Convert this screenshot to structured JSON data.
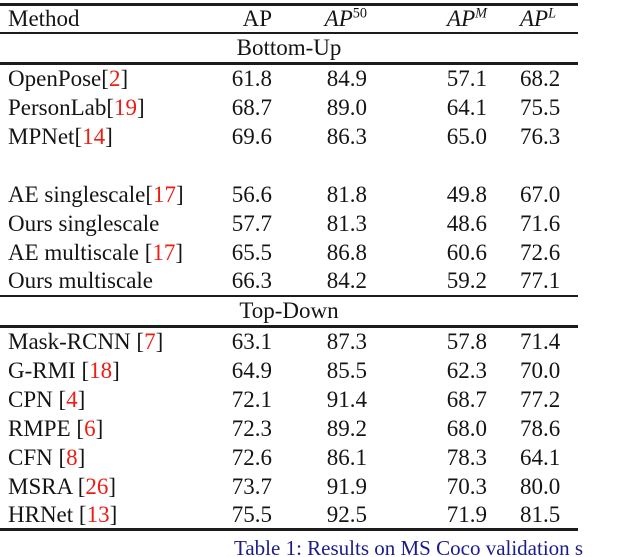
{
  "colors": {
    "citation_red": "#ee1c12",
    "caption_blue": "#1b1b8a",
    "text": "#141414",
    "rule": "#1c1c1c",
    "background": "#ffffff"
  },
  "table": {
    "columns": [
      {
        "label": "Method"
      },
      {
        "base": "AP",
        "sup": ""
      },
      {
        "base": "AP",
        "sup": "50"
      },
      {
        "base": "AP",
        "sup": "M"
      },
      {
        "base": "AP",
        "sup": "L"
      }
    ],
    "rows": [
      {
        "type": "section",
        "label": "Bottom-Up"
      },
      {
        "type": "data",
        "method": "OpenPose",
        "bracket_open": "[",
        "cite": "2",
        "bracket_close": "]",
        "values": [
          "61.8",
          "84.9",
          "57.1",
          "68.2"
        ]
      },
      {
        "type": "data",
        "method": "PersonLab",
        "bracket_open": "[",
        "cite": "19",
        "bracket_close": "]",
        "values": [
          "68.7",
          "89.0",
          "64.1",
          "75.5"
        ]
      },
      {
        "type": "data",
        "method": "MPNet",
        "bracket_open": "[",
        "cite": "14",
        "bracket_close": "]",
        "values": [
          "69.6",
          "86.3",
          "65.0",
          "76.3"
        ]
      },
      {
        "type": "spacer"
      },
      {
        "type": "data",
        "method": "AE singlescale",
        "bracket_open": "[",
        "cite": "17",
        "bracket_close": "]",
        "values": [
          "56.6",
          "81.8",
          "49.8",
          "67.0"
        ]
      },
      {
        "type": "data",
        "method": "Ours singlescale",
        "bracket_open": "",
        "cite": "",
        "bracket_close": "",
        "values": [
          "57.7",
          "81.3",
          "48.6",
          "71.6"
        ]
      },
      {
        "type": "data",
        "method": "AE multiscale ",
        "bracket_open": "[",
        "cite": "17",
        "bracket_close": "]",
        "values": [
          "65.5",
          "86.8",
          "60.6",
          "72.6"
        ]
      },
      {
        "type": "data",
        "method": "Ours multiscale",
        "bracket_open": "",
        "cite": "",
        "bracket_close": "",
        "values": [
          "66.3",
          "84.2",
          "59.2",
          "77.1"
        ],
        "rule_below": true
      },
      {
        "type": "section",
        "label": "Top-Down"
      },
      {
        "type": "data",
        "method": "Mask-RCNN ",
        "bracket_open": "[",
        "cite": "7",
        "bracket_close": "]",
        "values": [
          "63.1",
          "87.3",
          "57.8",
          "71.4"
        ]
      },
      {
        "type": "data",
        "method": "G-RMI ",
        "bracket_open": "[",
        "cite": "18",
        "bracket_close": "]",
        "values": [
          "64.9",
          "85.5",
          "62.3",
          "70.0"
        ]
      },
      {
        "type": "data",
        "method": "CPN ",
        "bracket_open": "[",
        "cite": "4",
        "bracket_close": "]",
        "values": [
          "72.1",
          "91.4",
          "68.7",
          "77.2"
        ]
      },
      {
        "type": "data",
        "method": "RMPE ",
        "bracket_open": "[",
        "cite": "6",
        "bracket_close": "]",
        "values": [
          "72.3",
          "89.2",
          "68.0",
          "78.6"
        ]
      },
      {
        "type": "data",
        "method": "CFN ",
        "bracket_open": "[",
        "cite": "8",
        "bracket_close": "]",
        "values": [
          "72.6",
          "86.1",
          "78.3",
          "64.1"
        ]
      },
      {
        "type": "data",
        "method": "MSRA ",
        "bracket_open": "[",
        "cite": "26",
        "bracket_close": "]",
        "values": [
          "73.7",
          "91.9",
          "70.3",
          "80.0"
        ]
      },
      {
        "type": "data",
        "method": "HRNet ",
        "bracket_open": "[",
        "cite": "13",
        "bracket_close": "]",
        "values": [
          "75.5",
          "92.5",
          "71.9",
          "81.5"
        ]
      }
    ]
  },
  "caption": {
    "text": "Table 1: Results on MS Coco validation s"
  }
}
